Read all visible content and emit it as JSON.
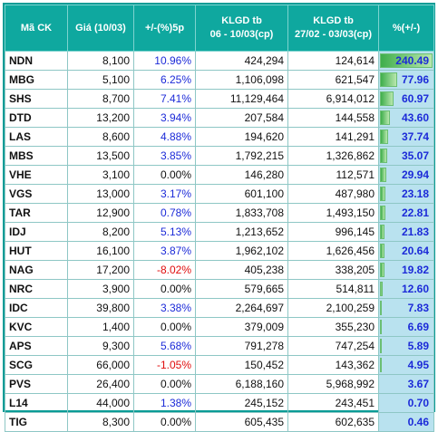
{
  "headers": [
    "Mã CK",
    "Giá (10/03)",
    "+/-(%)5p",
    "KLGD tb\n06 - 10/03(cp)",
    "KLGD tb\n27/02 - 03/03(cp)",
    "%(+/-)"
  ],
  "colors": {
    "header_bg": "#0fa89f",
    "positive": "#1c2bd8",
    "negative": "#e00d0d",
    "pct_bg": "#b9e2ef",
    "bar": "#3fae4c"
  },
  "rows": [
    {
      "code": "NDN",
      "price": "8,100",
      "change": "10.96%",
      "vol_recent": "424,294",
      "vol_prior": "124,614",
      "pct": "240.49",
      "pct_value": 240.49
    },
    {
      "code": "MBG",
      "price": "5,100",
      "change": "6.25%",
      "vol_recent": "1,106,098",
      "vol_prior": "621,547",
      "pct": "77.96",
      "pct_value": 77.96
    },
    {
      "code": "SHS",
      "price": "8,700",
      "change": "7.41%",
      "vol_recent": "11,129,464",
      "vol_prior": "6,914,012",
      "pct": "60.97",
      "pct_value": 60.97
    },
    {
      "code": "DTD",
      "price": "13,200",
      "change": "3.94%",
      "vol_recent": "207,584",
      "vol_prior": "144,558",
      "pct": "43.60",
      "pct_value": 43.6
    },
    {
      "code": "LAS",
      "price": "8,600",
      "change": "4.88%",
      "vol_recent": "194,620",
      "vol_prior": "141,291",
      "pct": "37.74",
      "pct_value": 37.74
    },
    {
      "code": "MBS",
      "price": "13,500",
      "change": "3.85%",
      "vol_recent": "1,792,215",
      "vol_prior": "1,326,862",
      "pct": "35.07",
      "pct_value": 35.07
    },
    {
      "code": "VHE",
      "price": "3,100",
      "change": "0.00%",
      "vol_recent": "146,280",
      "vol_prior": "112,571",
      "pct": "29.94",
      "pct_value": 29.94
    },
    {
      "code": "VGS",
      "price": "13,000",
      "change": "3.17%",
      "vol_recent": "601,100",
      "vol_prior": "487,980",
      "pct": "23.18",
      "pct_value": 23.18
    },
    {
      "code": "TAR",
      "price": "12,900",
      "change": "0.78%",
      "vol_recent": "1,833,708",
      "vol_prior": "1,493,150",
      "pct": "22.81",
      "pct_value": 22.81
    },
    {
      "code": "IDJ",
      "price": "8,200",
      "change": "5.13%",
      "vol_recent": "1,213,652",
      "vol_prior": "996,145",
      "pct": "21.83",
      "pct_value": 21.83
    },
    {
      "code": "HUT",
      "price": "16,100",
      "change": "3.87%",
      "vol_recent": "1,962,102",
      "vol_prior": "1,626,456",
      "pct": "20.64",
      "pct_value": 20.64
    },
    {
      "code": "NAG",
      "price": "17,200",
      "change": "-8.02%",
      "vol_recent": "405,238",
      "vol_prior": "338,205",
      "pct": "19.82",
      "pct_value": 19.82
    },
    {
      "code": "NRC",
      "price": "3,900",
      "change": "0.00%",
      "vol_recent": "579,665",
      "vol_prior": "514,811",
      "pct": "12.60",
      "pct_value": 12.6
    },
    {
      "code": "IDC",
      "price": "39,800",
      "change": "3.38%",
      "vol_recent": "2,264,697",
      "vol_prior": "2,100,259",
      "pct": "7.83",
      "pct_value": 7.83
    },
    {
      "code": "KVC",
      "price": "1,400",
      "change": "0.00%",
      "vol_recent": "379,009",
      "vol_prior": "355,230",
      "pct": "6.69",
      "pct_value": 6.69
    },
    {
      "code": "APS",
      "price": "9,300",
      "change": "5.68%",
      "vol_recent": "791,278",
      "vol_prior": "747,254",
      "pct": "5.89",
      "pct_value": 5.89
    },
    {
      "code": "SCG",
      "price": "66,000",
      "change": "-1.05%",
      "vol_recent": "150,452",
      "vol_prior": "143,362",
      "pct": "4.95",
      "pct_value": 4.95
    },
    {
      "code": "PVS",
      "price": "26,400",
      "change": "0.00%",
      "vol_recent": "6,188,160",
      "vol_prior": "5,968,992",
      "pct": "3.67",
      "pct_value": 3.67
    },
    {
      "code": "L14",
      "price": "44,000",
      "change": "1.38%",
      "vol_recent": "245,152",
      "vol_prior": "243,451",
      "pct": "0.70",
      "pct_value": 0.7
    },
    {
      "code": "TIG",
      "price": "8,300",
      "change": "0.00%",
      "vol_recent": "605,435",
      "vol_prior": "602,635",
      "pct": "0.46",
      "pct_value": 0.46
    }
  ]
}
